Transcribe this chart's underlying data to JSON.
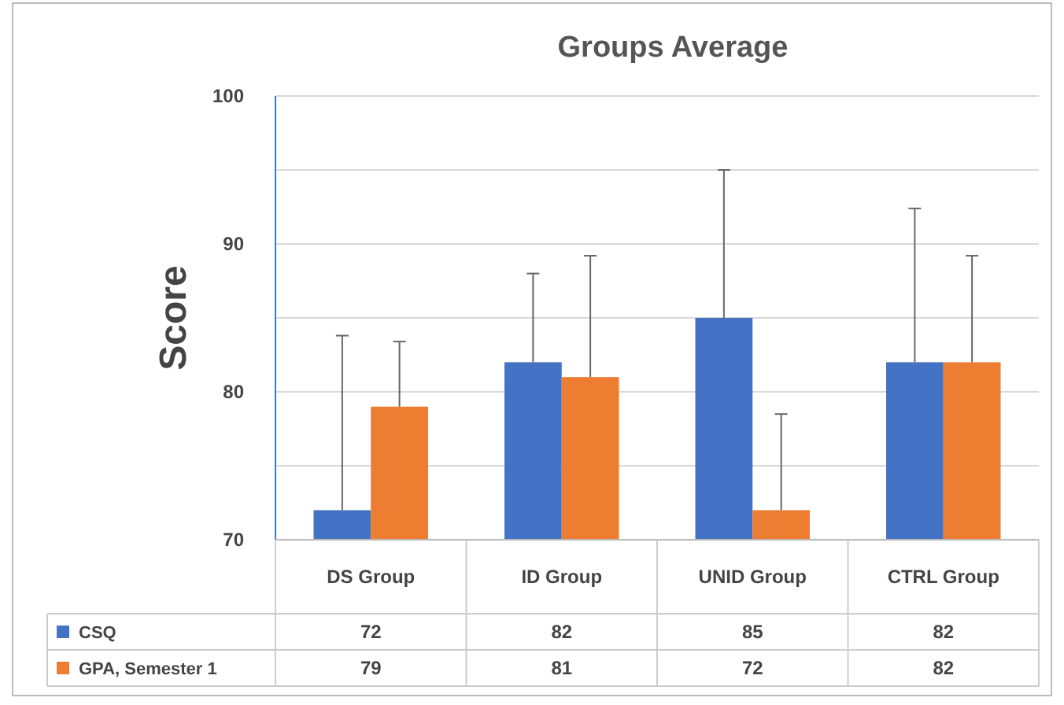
{
  "chart_data": {
    "type": "bar",
    "title": "Groups Average",
    "ylabel": "Score",
    "categories": [
      "DS Group",
      "ID Group",
      "UNID Group",
      "CTRL Group"
    ],
    "series": [
      {
        "name": "CSQ",
        "color": "#4472c4",
        "values": [
          72,
          82,
          85,
          82
        ],
        "errors": [
          [
            72,
            83.8
          ],
          [
            82,
            88
          ],
          [
            85,
            95
          ],
          [
            82,
            92.4
          ]
        ]
      },
      {
        "name": "GPA, Semester 1",
        "color": "#ed7d31",
        "values": [
          79,
          81,
          72,
          82
        ],
        "errors": [
          [
            79,
            83.4
          ],
          [
            81,
            89.2
          ],
          [
            72,
            78.5
          ],
          [
            82,
            89.2
          ]
        ]
      }
    ],
    "ylim": [
      70,
      100
    ],
    "yticks": [
      70,
      {
        "value": 75,
        "label": null
      },
      80,
      {
        "value": 85,
        "label": null
      },
      90,
      {
        "value": 95,
        "label": null
      },
      100
    ],
    "grid": "y",
    "legend": "bottom",
    "data_labels": true
  }
}
